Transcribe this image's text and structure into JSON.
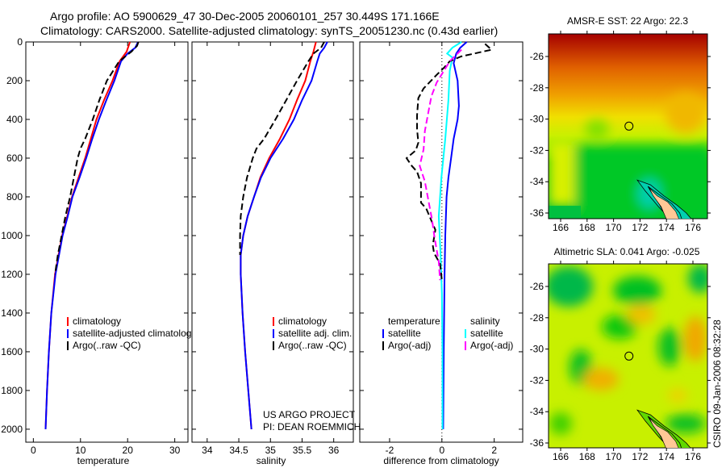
{
  "title": {
    "line1": "Argo profile: AO 5900629_47 30-Dec-2005 20060101_257 30.449S 171.166E",
    "line2": "Climatology: CARS2000. Satellite-adjusted climatology: synTS_20051230.nc (0.43d earlier)"
  },
  "colors": {
    "climatology": "#ff0000",
    "satellite": "#0000ff",
    "argo": "#000000",
    "salinity_satellite": "#00ffff",
    "salinity_argo": "#ff00ff",
    "land": "#ffc896"
  },
  "chart_data": [
    {
      "type": "line",
      "title": "",
      "xlabel": "temperature",
      "ylabel": "",
      "xlim": [
        -1.6,
        32.8
      ],
      "ylim": [
        2067,
        0
      ],
      "xticks": [
        "0",
        "10",
        "20",
        "30"
      ],
      "xtick_values": [
        0,
        10,
        20,
        30
      ],
      "yticks": [
        "0",
        "200",
        "400",
        "600",
        "800",
        "1000",
        "1200",
        "1400",
        "1600",
        "1800",
        "2000"
      ],
      "ytick_values": [
        0,
        200,
        400,
        600,
        800,
        1000,
        1200,
        1400,
        1600,
        1800,
        2000
      ],
      "legend": [
        "climatology",
        "satellite-adjusted climatology",
        "Argo(..raw -QC)"
      ],
      "series": [
        {
          "name": "climatology",
          "color": "#ff0000",
          "dash": false,
          "depth": [
            0,
            50,
            100,
            200,
            300,
            400,
            500,
            600,
            700,
            800,
            900,
            1000,
            1200,
            1400,
            1600,
            1800,
            2000
          ],
          "values": [
            20.5,
            19.8,
            18.3,
            16.8,
            15,
            13.4,
            12.2,
            11,
            9.6,
            8.2,
            7.2,
            6.1,
            4.6,
            3.8,
            3.3,
            2.9,
            2.6
          ]
        },
        {
          "name": "satellite-adjusted climatology",
          "color": "#0000ff",
          "dash": false,
          "depth": [
            0,
            30,
            60,
            100,
            200,
            300,
            400,
            500,
            600,
            700,
            800,
            900,
            1000,
            1200,
            1400,
            1600,
            1800,
            2000
          ],
          "values": [
            22.2,
            21.6,
            20,
            18.6,
            17.2,
            15.5,
            13.9,
            12.5,
            11.2,
            9.8,
            8.3,
            7.3,
            6.2,
            4.7,
            3.8,
            3.3,
            2.9,
            2.6
          ]
        },
        {
          "name": "Argo(..raw -QC)",
          "color": "#000000",
          "dash": true,
          "depth": [
            0,
            20,
            50,
            100,
            200,
            300,
            400,
            500,
            550,
            600,
            700,
            800,
            900,
            1000,
            1100,
            1200
          ],
          "values": [
            22.3,
            22,
            20.8,
            18.2,
            15.6,
            14,
            12.6,
            11,
            10,
            9.4,
            8.6,
            7.8,
            6.8,
            6,
            5.2,
            4.6
          ]
        }
      ]
    },
    {
      "type": "line",
      "title": "",
      "xlabel": "salinity",
      "ylabel": "",
      "xlim": [
        33.76,
        36.31
      ],
      "ylim": [
        2067,
        0
      ],
      "xticks": [
        "34",
        "34.5",
        "35",
        "35.5",
        "36"
      ],
      "xtick_values": [
        34,
        34.5,
        35,
        35.5,
        36
      ],
      "legend": [
        "climatology",
        "satellite adj. clim.",
        "Argo(..raw -QC)"
      ],
      "annotation": [
        "US ARGO PROJECT",
        "PI: DEAN ROEMMICH"
      ],
      "series": [
        {
          "name": "climatology",
          "color": "#ff0000",
          "dash": false,
          "depth": [
            0,
            50,
            100,
            200,
            300,
            400,
            500,
            600,
            700,
            800,
            900,
            1000,
            1100,
            1200,
            1400,
            1600,
            1800,
            2000
          ],
          "values": [
            35.72,
            35.68,
            35.63,
            35.55,
            35.42,
            35.3,
            35.15,
            34.98,
            34.84,
            34.74,
            34.64,
            34.57,
            34.53,
            34.53,
            34.56,
            34.6,
            34.65,
            34.7
          ]
        },
        {
          "name": "satellite adj. clim.",
          "color": "#0000ff",
          "dash": false,
          "depth": [
            0,
            30,
            60,
            100,
            200,
            300,
            400,
            500,
            600,
            700,
            800,
            900,
            1000,
            1100,
            1200,
            1400,
            1600,
            1800,
            2000
          ],
          "values": [
            35.9,
            35.85,
            35.78,
            35.74,
            35.65,
            35.5,
            35.37,
            35.2,
            35.0,
            34.85,
            34.74,
            34.64,
            34.57,
            34.53,
            34.53,
            34.56,
            34.6,
            34.65,
            34.7
          ]
        },
        {
          "name": "Argo(..raw -QC)",
          "color": "#000000",
          "dash": true,
          "depth": [
            0,
            30,
            60,
            100,
            200,
            300,
            400,
            500,
            550,
            600,
            700,
            800,
            900,
            1000,
            1100
          ],
          "values": [
            35.85,
            35.8,
            35.68,
            35.6,
            35.42,
            35.25,
            35.08,
            34.9,
            34.78,
            34.72,
            34.63,
            34.57,
            34.53,
            34.52,
            34.52
          ]
        }
      ]
    },
    {
      "type": "line",
      "title": "",
      "xlabel": "difference from climatology",
      "ylabel": "",
      "xlim": [
        -3.14,
        3.09
      ],
      "ylim": [
        2067,
        0
      ],
      "xticks": [
        "-2",
        "0",
        "2"
      ],
      "xtick_values": [
        -2,
        0,
        2
      ],
      "legend_headers": [
        "temperature",
        "salinity"
      ],
      "legend": [
        "satellite",
        "Argo(-adj)",
        "satellite",
        "Argo(-adj)"
      ],
      "series": [
        {
          "name": "temperature satellite",
          "color": "#0000ff",
          "dash": false,
          "depth": [
            0,
            30,
            60,
            110,
            200,
            250,
            330,
            400,
            500,
            600,
            700,
            800,
            1000,
            1200,
            1600,
            2000
          ],
          "values": [
            0.95,
            0.7,
            0.55,
            0.45,
            0.6,
            0.62,
            0.65,
            0.6,
            0.45,
            0.35,
            0.25,
            0.18,
            0.13,
            0.1,
            0.07,
            0.05
          ]
        },
        {
          "name": "salinity satellite",
          "color": "#00ffff",
          "dash": false,
          "depth": [
            0,
            30,
            60,
            80,
            150,
            300,
            500,
            700,
            900,
            1100,
            1300,
            1600,
            2000
          ],
          "values": [
            0.75,
            0.4,
            0.2,
            0.4,
            0.3,
            0.25,
            0.13,
            -0.02,
            -0.12,
            -0.05,
            0,
            0.02,
            0.02
          ]
        },
        {
          "name": "temperature Argo(-adj)",
          "color": "#000000",
          "dash": true,
          "depth": [
            10,
            40,
            75,
            100,
            130,
            170,
            240,
            290,
            380,
            450,
            520,
            560,
            600,
            640,
            670,
            730,
            830,
            860,
            940,
            970,
            1050,
            1090,
            1145,
            1230
          ],
          "values": [
            1.65,
            1.9,
            0.73,
            0.3,
            0.1,
            -0.2,
            -0.7,
            -0.9,
            -0.95,
            -0.95,
            -0.9,
            -1.0,
            -1.35,
            -1.15,
            -0.95,
            -0.8,
            -0.8,
            -0.6,
            -0.35,
            -0.25,
            -0.35,
            -0.3,
            -0.07,
            0
          ]
        },
        {
          "name": "salinity Argo(-adj)",
          "color": "#ff00ff",
          "dash": true,
          "depth": [
            40,
            100,
            210,
            280,
            350,
            460,
            555,
            640,
            720,
            830,
            915,
            1010,
            1135,
            1230
          ],
          "values": [
            0.75,
            0.3,
            -0.2,
            -0.4,
            -0.5,
            -0.65,
            -0.7,
            -0.85,
            -0.65,
            -0.5,
            -0.38,
            -0.28,
            -0.12,
            -0.07
          ]
        }
      ]
    }
  ],
  "maps": [
    {
      "title": "AMSR-E SST: 22 Argo: 22.3",
      "lon_ticks": [
        "166",
        "168",
        "170",
        "172",
        "174",
        "176"
      ],
      "lat_ticks": [
        "-26",
        "-28",
        "-30",
        "-32",
        "-34",
        "-36"
      ],
      "argo_lon": 171.166,
      "argo_lat": -30.449
    },
    {
      "title": "Altimetric SLA: 0.041  Argo: -0.025",
      "lon_ticks": [
        "166",
        "168",
        "170",
        "172",
        "174",
        "176"
      ],
      "lat_ticks": [
        "-26",
        "-28",
        "-30",
        "-32",
        "-34",
        "-36"
      ],
      "argo_lon": 171.166,
      "argo_lat": -30.449
    }
  ],
  "footer": "CSIRO 09-Jan-2006 08:32:28"
}
